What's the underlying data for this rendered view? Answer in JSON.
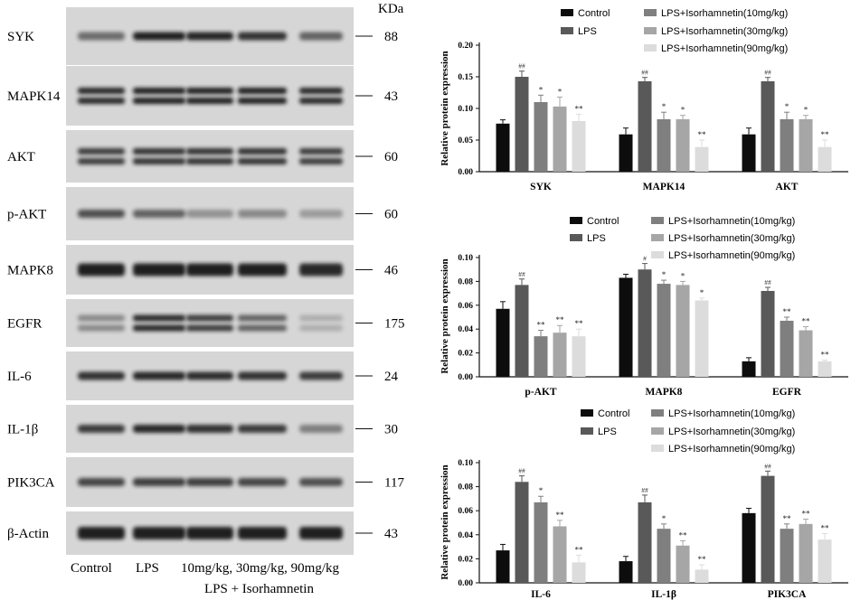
{
  "blot": {
    "kda_label": "KDa",
    "rows": [
      {
        "protein": "SYK",
        "kda": "88",
        "intensity": [
          0.55,
          0.95,
          0.92,
          0.85,
          0.6
        ]
      },
      {
        "protein": "MAPK14",
        "kda": "43",
        "intensity": [
          0.9,
          0.95,
          0.95,
          0.95,
          0.9
        ]
      },
      {
        "protein": "AKT",
        "kda": "60",
        "intensity": [
          0.8,
          0.85,
          0.85,
          0.85,
          0.8
        ]
      },
      {
        "protein": "p-AKT",
        "kda": "60",
        "intensity": [
          0.7,
          0.6,
          0.35,
          0.4,
          0.3
        ]
      },
      {
        "protein": "MAPK8",
        "kda": "46",
        "intensity": [
          0.95,
          0.95,
          0.95,
          0.95,
          0.9
        ]
      },
      {
        "protein": "EGFR",
        "kda": "175",
        "intensity": [
          0.4,
          0.9,
          0.8,
          0.6,
          0.2
        ]
      },
      {
        "protein": "IL-6",
        "kda": "24",
        "intensity": [
          0.85,
          0.9,
          0.88,
          0.85,
          0.8
        ]
      },
      {
        "protein": "IL-1β",
        "kda": "30",
        "intensity": [
          0.8,
          0.9,
          0.85,
          0.8,
          0.45
        ]
      },
      {
        "protein": "PIK3CA",
        "kda": "117",
        "intensity": [
          0.75,
          0.78,
          0.78,
          0.75,
          0.7
        ]
      },
      {
        "protein": "β-Actin",
        "kda": "43",
        "intensity": [
          0.95,
          0.95,
          0.95,
          0.95,
          0.95
        ]
      }
    ],
    "lane_labels": [
      "Control",
      "LPS",
      "10mg/kg, 30mg/kg, 90mg/kg"
    ],
    "group_label": "LPS + Isorhamnetin"
  },
  "chart_data": [
    {
      "type": "bar",
      "categories": [
        "SYK",
        "MAPK14",
        "AKT"
      ],
      "ylabel": "Relative protein expression",
      "ylim": [
        0,
        0.2
      ],
      "yticks": [
        "0.00",
        "0.05",
        "0.10",
        "0.15",
        "0.20"
      ],
      "legend": [
        "Control",
        "LPS",
        "LPS+Isorhamnetin(10mg/kg)",
        "LPS+Isorhamnetin(30mg/kg)",
        "LPS+Isorhamnetin(90mg/kg)"
      ],
      "series": [
        {
          "name": "Control",
          "values": [
            0.076,
            0.059,
            0.059
          ],
          "errors": [
            0.006,
            0.01,
            0.01
          ],
          "marks": [
            "",
            "",
            ""
          ]
        },
        {
          "name": "LPS",
          "values": [
            0.15,
            0.143,
            0.143
          ],
          "errors": [
            0.009,
            0.006,
            0.006
          ],
          "marks": [
            "##",
            "##",
            "##"
          ]
        },
        {
          "name": "LPS+Isorhamnetin(10mg/kg)",
          "values": [
            0.11,
            0.083,
            0.083
          ],
          "errors": [
            0.011,
            0.011,
            0.011
          ],
          "marks": [
            "*",
            "*",
            "*"
          ]
        },
        {
          "name": "LPS+Isorhamnetin(30mg/kg)",
          "values": [
            0.103,
            0.083,
            0.083
          ],
          "errors": [
            0.015,
            0.006,
            0.006
          ],
          "marks": [
            "*",
            "*",
            "*"
          ]
        },
        {
          "name": "LPS+Isorhamnetin(90mg/kg)",
          "values": [
            0.08,
            0.039,
            0.039
          ],
          "errors": [
            0.011,
            0.011,
            0.011
          ],
          "marks": [
            "**",
            "**",
            "**"
          ]
        }
      ]
    },
    {
      "type": "bar",
      "categories": [
        "p-AKT",
        "MAPK8",
        "EGFR"
      ],
      "ylabel": "Relative protein expression",
      "ylim": [
        0,
        0.1
      ],
      "yticks": [
        "0.00",
        "0.02",
        "0.04",
        "0.06",
        "0.08",
        "0.10"
      ],
      "legend": [
        "Control",
        "LPS",
        "LPS+Isorhamnetin(10mg/kg)",
        "LPS+Isorhamnetin(30mg/kg)",
        "LPS+Isorhamnetin(90mg/kg)"
      ],
      "series": [
        {
          "name": "Control",
          "values": [
            0.057,
            0.083,
            0.013
          ],
          "errors": [
            0.006,
            0.003,
            0.003
          ],
          "marks": [
            "",
            "",
            ""
          ]
        },
        {
          "name": "LPS",
          "values": [
            0.077,
            0.09,
            0.072
          ],
          "errors": [
            0.005,
            0.005,
            0.003
          ],
          "marks": [
            "##",
            "#",
            "##"
          ]
        },
        {
          "name": "LPS+Isorhamnetin(10mg/kg)",
          "values": [
            0.034,
            0.078,
            0.047
          ],
          "errors": [
            0.005,
            0.003,
            0.003
          ],
          "marks": [
            "**",
            "*",
            "**"
          ]
        },
        {
          "name": "LPS+Isorhamnetin(30mg/kg)",
          "values": [
            0.037,
            0.077,
            0.039
          ],
          "errors": [
            0.006,
            0.003,
            0.003
          ],
          "marks": [
            "**",
            "*",
            "**"
          ]
        },
        {
          "name": "LPS+Isorhamnetin(90mg/kg)",
          "values": [
            0.034,
            0.064,
            0.013
          ],
          "errors": [
            0.006,
            0.002,
            0.001
          ],
          "marks": [
            "**",
            "*",
            "**"
          ]
        }
      ]
    },
    {
      "type": "bar",
      "categories": [
        "IL-6",
        "IL-1β",
        "PIK3CA"
      ],
      "ylabel": "Relative protein expression",
      "ylim": [
        0,
        0.1
      ],
      "yticks": [
        "0.00",
        "0.02",
        "0.04",
        "0.06",
        "0.08",
        "0.10"
      ],
      "legend": [
        "Control",
        "LPS",
        "LPS+Isorhamnetin(10mg/kg)",
        "LPS+Isorhamnetin(30mg/kg)",
        "LPS+Isorhamnetin(90mg/kg)"
      ],
      "series": [
        {
          "name": "Control",
          "values": [
            0.027,
            0.018,
            0.058
          ],
          "errors": [
            0.005,
            0.004,
            0.004
          ],
          "marks": [
            "",
            "",
            ""
          ]
        },
        {
          "name": "LPS",
          "values": [
            0.084,
            0.067,
            0.089
          ],
          "errors": [
            0.005,
            0.006,
            0.004
          ],
          "marks": [
            "##",
            "##",
            "##"
          ]
        },
        {
          "name": "LPS+Isorhamnetin(10mg/kg)",
          "values": [
            0.067,
            0.045,
            0.045
          ],
          "errors": [
            0.005,
            0.004,
            0.004
          ],
          "marks": [
            "*",
            "*",
            "**"
          ]
        },
        {
          "name": "LPS+Isorhamnetin(30mg/kg)",
          "values": [
            0.047,
            0.031,
            0.049
          ],
          "errors": [
            0.005,
            0.004,
            0.004
          ],
          "marks": [
            "**",
            "**",
            "**"
          ]
        },
        {
          "name": "LPS+Isorhamnetin(90mg/kg)",
          "values": [
            0.017,
            0.011,
            0.036
          ],
          "errors": [
            0.006,
            0.004,
            0.005
          ],
          "marks": [
            "**",
            "**",
            "**"
          ]
        }
      ]
    }
  ],
  "colors": {
    "series": [
      "#0d0d0d",
      "#595959",
      "#7f7f7f",
      "#a6a6a6",
      "#dcdcdc"
    ],
    "blot_bg": "#d6d6d6",
    "band": "#141414"
  }
}
